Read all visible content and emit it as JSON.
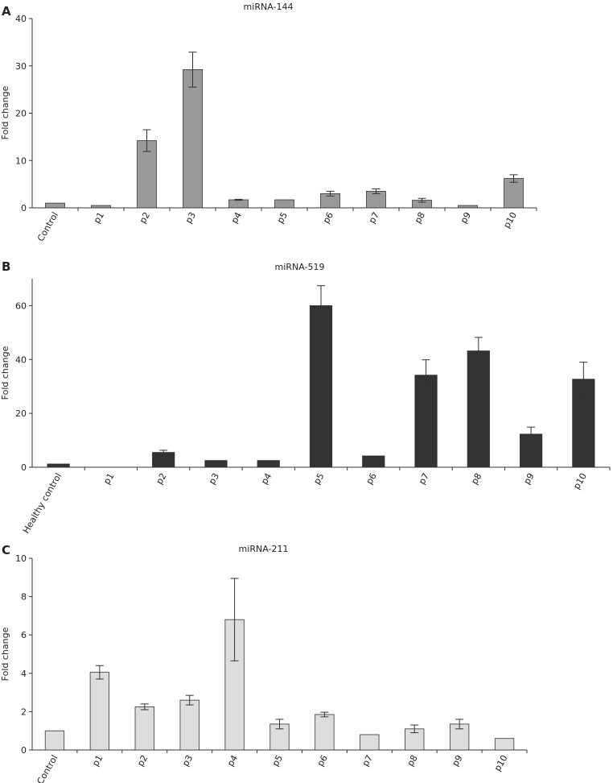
{
  "chart_data": [
    {
      "type": "bar",
      "panel": "A",
      "title": "miRNA-144",
      "ylabel": "Fold change",
      "xlabel": "",
      "ylim": [
        0,
        40
      ],
      "yticks": [
        0,
        10,
        20,
        30,
        40
      ],
      "bar_color": "#999999",
      "categories": [
        "Control",
        "p1",
        "p2",
        "p3",
        "p4",
        "p5",
        "p6",
        "p7",
        "p8",
        "p9",
        "p10"
      ],
      "values": [
        1.0,
        0.5,
        14.2,
        29.2,
        1.7,
        1.7,
        3.0,
        3.5,
        1.6,
        0.5,
        6.2
      ],
      "errors": [
        0,
        0,
        2.3,
        3.7,
        0.1,
        0,
        0.5,
        0.5,
        0.4,
        0,
        0.8
      ]
    },
    {
      "type": "bar",
      "panel": "B",
      "title": "miRNA-519",
      "ylabel": "Fold change",
      "xlabel": "",
      "ylim": [
        0,
        70
      ],
      "yticks": [
        0,
        20,
        40,
        60
      ],
      "bar_color": "#333333",
      "categories": [
        "Healthy control",
        "p1",
        "p2",
        "p3",
        "p4",
        "p5",
        "p6",
        "p7",
        "p8",
        "p9",
        "p10"
      ],
      "values": [
        1.2,
        0,
        5.5,
        2.5,
        2.5,
        60,
        4.2,
        34.2,
        43.2,
        12.3,
        32.7
      ],
      "errors": [
        0,
        0,
        0.8,
        0,
        0,
        7.4,
        0,
        5.7,
        5.0,
        2.6,
        6.3
      ]
    },
    {
      "type": "bar",
      "panel": "C",
      "title": "miRNA-211",
      "ylabel": "Fold change",
      "xlabel": "",
      "ylim": [
        0,
        10
      ],
      "yticks": [
        0,
        2,
        4,
        6,
        8,
        10
      ],
      "bar_color": "#dddddd",
      "categories": [
        "Control",
        "p1",
        "p2",
        "p3",
        "p4",
        "p5",
        "p6",
        "p7",
        "p8",
        "p9",
        "p10"
      ],
      "values": [
        1.0,
        4.05,
        2.25,
        2.6,
        6.8,
        1.35,
        1.85,
        0.8,
        1.1,
        1.35,
        0.6
      ],
      "errors": [
        0,
        0.35,
        0.15,
        0.25,
        2.15,
        0.25,
        0.12,
        0,
        0.2,
        0.25,
        0
      ]
    }
  ]
}
